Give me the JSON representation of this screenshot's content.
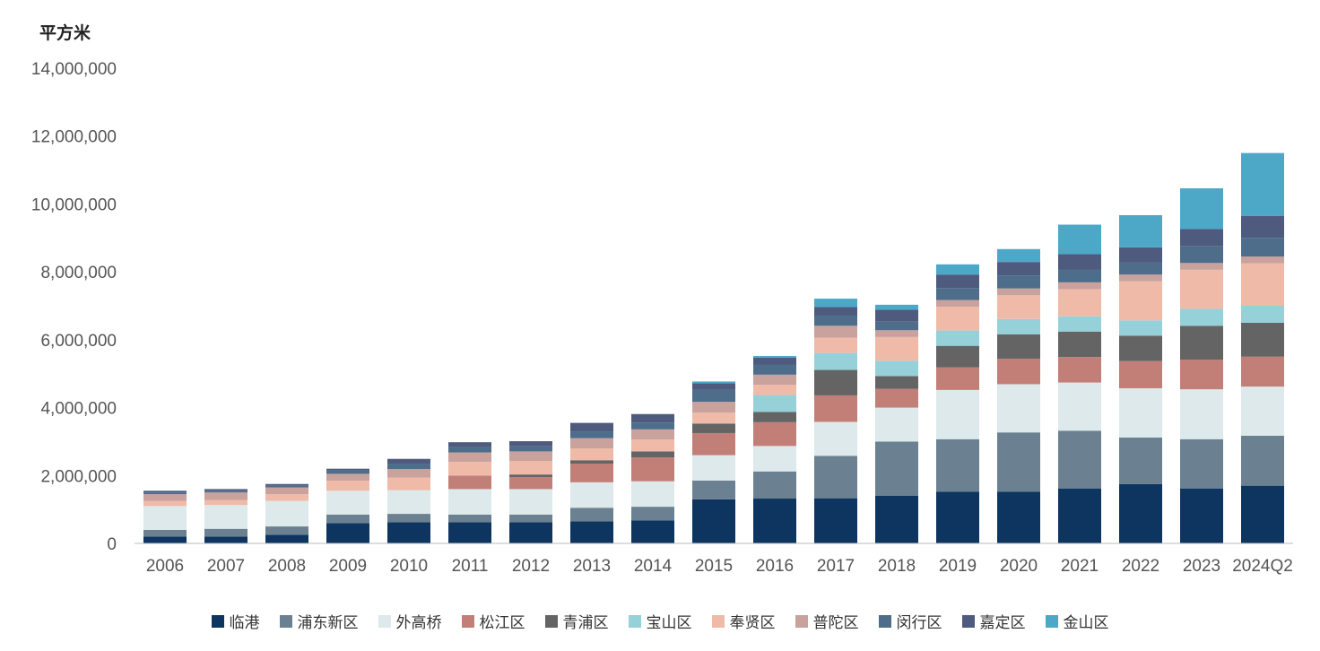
{
  "chart_data": {
    "type": "bar",
    "stacked": true,
    "title": "",
    "ylabel": "平方米",
    "xlabel": "",
    "ylim": [
      0,
      14000000
    ],
    "yticks": [
      "0",
      "2,000,000",
      "4,000,000",
      "6,000,000",
      "8,000,000",
      "10,000,000",
      "12,000,000",
      "14,000,000"
    ],
    "ytick_values": [
      0,
      2000000,
      4000000,
      6000000,
      8000000,
      10000000,
      12000000,
      14000000
    ],
    "grid": false,
    "legend_position": "bottom",
    "categories": [
      "2006",
      "2007",
      "2008",
      "2009",
      "2010",
      "2011",
      "2012",
      "2013",
      "2014",
      "2015",
      "2016",
      "2017",
      "2018",
      "2019",
      "2020",
      "2021",
      "2022",
      "2023",
      "2024Q2"
    ],
    "series": [
      {
        "name": "临港",
        "color": "#0d3560",
        "values": [
          200000,
          200000,
          250000,
          600000,
          620000,
          620000,
          620000,
          650000,
          680000,
          1300000,
          1320000,
          1330000,
          1400000,
          1520000,
          1520000,
          1620000,
          1750000,
          1620000,
          1700000
        ]
      },
      {
        "name": "浦东新区",
        "color": "#6b8191",
        "values": [
          200000,
          230000,
          250000,
          250000,
          250000,
          230000,
          230000,
          400000,
          400000,
          550000,
          800000,
          1250000,
          1600000,
          1550000,
          1750000,
          1700000,
          1370000,
          1450000,
          1470000
        ]
      },
      {
        "name": "外高桥",
        "color": "#dde9ea",
        "values": [
          700000,
          700000,
          750000,
          700000,
          700000,
          750000,
          750000,
          750000,
          750000,
          750000,
          750000,
          1000000,
          1000000,
          1450000,
          1420000,
          1420000,
          1450000,
          1470000,
          1450000
        ]
      },
      {
        "name": "松江区",
        "color": "#c17f78",
        "values": [
          0,
          0,
          0,
          0,
          0,
          400000,
          350000,
          550000,
          700000,
          650000,
          700000,
          780000,
          550000,
          670000,
          750000,
          750000,
          800000,
          870000,
          880000
        ]
      },
      {
        "name": "青浦区",
        "color": "#646464",
        "values": [
          0,
          0,
          0,
          0,
          0,
          0,
          80000,
          100000,
          180000,
          280000,
          300000,
          750000,
          380000,
          630000,
          720000,
          750000,
          750000,
          1000000,
          1000000
        ]
      },
      {
        "name": "宝山区",
        "color": "#96d0d8",
        "values": [
          0,
          0,
          0,
          0,
          0,
          0,
          0,
          0,
          0,
          0,
          500000,
          500000,
          450000,
          450000,
          450000,
          450000,
          450000,
          500000,
          500000
        ]
      },
      {
        "name": "奉贤区",
        "color": "#efbaa8",
        "values": [
          150000,
          150000,
          200000,
          300000,
          370000,
          400000,
          400000,
          350000,
          350000,
          320000,
          300000,
          450000,
          700000,
          700000,
          700000,
          800000,
          1150000,
          1150000,
          1250000
        ]
      },
      {
        "name": "普陀区",
        "color": "#c9a19d",
        "values": [
          200000,
          220000,
          200000,
          200000,
          250000,
          280000,
          280000,
          300000,
          300000,
          320000,
          300000,
          350000,
          200000,
          200000,
          200000,
          200000,
          200000,
          200000,
          200000
        ]
      },
      {
        "name": "闵行区",
        "color": "#4d6d8a",
        "values": [
          50000,
          50000,
          50000,
          100000,
          150000,
          150000,
          150000,
          200000,
          200000,
          350000,
          300000,
          300000,
          250000,
          350000,
          380000,
          380000,
          350000,
          500000,
          550000
        ]
      },
      {
        "name": "嘉定区",
        "color": "#4e5a7e",
        "values": [
          50000,
          50000,
          50000,
          50000,
          150000,
          150000,
          150000,
          250000,
          250000,
          200000,
          200000,
          250000,
          350000,
          400000,
          400000,
          450000,
          450000,
          500000,
          650000
        ]
      },
      {
        "name": "金山区",
        "color": "#4da8c7",
        "values": [
          0,
          0,
          0,
          0,
          0,
          0,
          0,
          0,
          0,
          50000,
          50000,
          250000,
          150000,
          300000,
          380000,
          870000,
          950000,
          1200000,
          1850000
        ]
      }
    ]
  }
}
